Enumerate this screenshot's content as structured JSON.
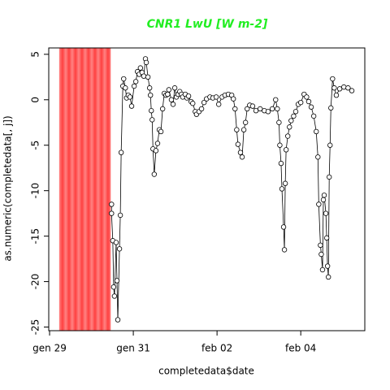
{
  "chart_data": {
    "type": "line",
    "title": "CNR1 LwU [W m-2]",
    "xlabel": "completedata$date",
    "ylabel": "as.numeric(completedata[, j])",
    "color": "#000000",
    "shade": {
      "range": [
        29.23,
        30.46
      ],
      "color": "#ff4040"
    },
    "xlim": [
      28.98,
      36.53
    ],
    "ylim": [
      -25.4,
      5.7
    ],
    "xticks": [
      {
        "value": 29,
        "label": "gen 29"
      },
      {
        "value": 31,
        "label": "gen 31"
      },
      {
        "value": 33,
        "label": "feb 02"
      },
      {
        "value": 35,
        "label": "feb 04"
      }
    ],
    "yticks": [
      -25,
      -20,
      -15,
      -10,
      -5,
      0,
      5
    ],
    "x": [
      30.48,
      30.48,
      30.51,
      30.53,
      30.55,
      30.59,
      30.61,
      30.63,
      30.67,
      30.69,
      30.71,
      30.75,
      30.77,
      30.81,
      30.84,
      30.88,
      30.92,
      30.96,
      31.02,
      31.06,
      31.1,
      31.14,
      31.17,
      31.21,
      31.25,
      31.29,
      31.31,
      31.35,
      31.39,
      31.41,
      31.43,
      31.45,
      31.47,
      31.5,
      31.54,
      31.58,
      31.62,
      31.66,
      31.7,
      31.74,
      31.78,
      31.82,
      31.85,
      31.91,
      31.95,
      31.99,
      32.03,
      32.07,
      32.11,
      32.15,
      32.18,
      32.24,
      32.28,
      32.32,
      32.38,
      32.42,
      32.48,
      32.51,
      32.57,
      32.63,
      32.69,
      32.75,
      32.83,
      32.9,
      32.98,
      33.04,
      33.12,
      33.19,
      33.27,
      33.35,
      33.39,
      33.43,
      33.47,
      33.5,
      33.56,
      33.6,
      33.64,
      33.68,
      33.72,
      33.78,
      33.85,
      33.93,
      34.03,
      34.13,
      34.22,
      34.32,
      34.4,
      34.44,
      34.48,
      34.5,
      34.53,
      34.55,
      34.59,
      34.61,
      34.63,
      34.65,
      34.69,
      34.73,
      34.77,
      34.83,
      34.88,
      34.94,
      35.0,
      35.08,
      35.14,
      35.19,
      35.25,
      35.31,
      35.37,
      35.41,
      35.43,
      35.47,
      35.49,
      35.52,
      35.54,
      35.56,
      35.6,
      35.62,
      35.64,
      35.66,
      35.68,
      35.7,
      35.72,
      35.76,
      35.8,
      35.85,
      35.93,
      36.03,
      36.13,
      36.22
    ],
    "values": [
      -11.5,
      -12.5,
      -15.5,
      -20.6,
      -21.6,
      -15.7,
      -19.9,
      -24.2,
      -16.4,
      -12.7,
      -5.8,
      1.5,
      2.3,
      1.3,
      0.2,
      0.5,
      0.3,
      -0.7,
      1.5,
      2.0,
      3.1,
      2.8,
      3.5,
      3.0,
      2.6,
      4.5,
      4.1,
      2.5,
      1.3,
      0.5,
      -1.2,
      -2.2,
      -5.4,
      -8.2,
      -5.6,
      -4.8,
      -3.3,
      -3.5,
      -1.0,
      0.7,
      0.5,
      0.6,
      1.1,
      0.0,
      -0.5,
      1.3,
      0.3,
      0.6,
      0.9,
      0.6,
      0.3,
      0.6,
      0.2,
      0.4,
      -0.2,
      -0.4,
      -1.3,
      -1.6,
      -1.3,
      -1.0,
      -0.3,
      0.1,
      0.3,
      0.2,
      0.3,
      -0.5,
      0.3,
      0.5,
      0.6,
      0.5,
      0.1,
      -1.0,
      -3.3,
      -4.9,
      -5.8,
      -6.3,
      -3.3,
      -2.5,
      -1.0,
      -0.6,
      -0.7,
      -1.2,
      -1.0,
      -1.2,
      -1.3,
      -1.0,
      0.0,
      -1.0,
      -2.5,
      -5.0,
      -7.0,
      -9.8,
      -14.0,
      -16.5,
      -9.2,
      -5.5,
      -4.0,
      -3.0,
      -2.3,
      -1.8,
      -1.3,
      -0.5,
      -0.3,
      0.6,
      0.3,
      -0.2,
      -0.8,
      -1.8,
      -3.5,
      -6.3,
      -11.5,
      -16.0,
      -17.0,
      -18.7,
      -11.0,
      -10.5,
      -12.5,
      -15.2,
      -18.3,
      -19.5,
      -8.5,
      -5.0,
      -0.9,
      2.3,
      1.3,
      0.5,
      1.2,
      1.4,
      1.3,
      1.0
    ]
  }
}
